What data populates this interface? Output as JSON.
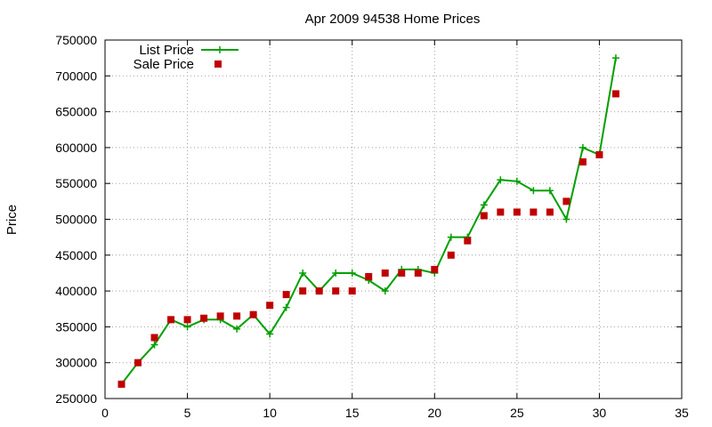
{
  "chart_data": {
    "type": "line",
    "title": "Apr 2009 94538 Home Prices",
    "xlabel": "",
    "ylabel": "Price",
    "xlim": [
      0,
      35
    ],
    "ylim": [
      250000,
      750000
    ],
    "xticks": [
      0,
      5,
      10,
      15,
      20,
      25,
      30,
      35
    ],
    "yticks": [
      250000,
      300000,
      350000,
      400000,
      450000,
      500000,
      550000,
      600000,
      650000,
      700000,
      750000
    ],
    "grid": true,
    "legend_position": "top-left",
    "series": [
      {
        "name": "List Price",
        "style": "line-plus",
        "color": "#00a000",
        "x": [
          1,
          2,
          3,
          4,
          5,
          6,
          7,
          8,
          9,
          10,
          11,
          12,
          13,
          14,
          15,
          16,
          17,
          18,
          19,
          20,
          21,
          22,
          23,
          24,
          25,
          26,
          27,
          28,
          29,
          30,
          31
        ],
        "y": [
          270000,
          300000,
          325000,
          360000,
          350000,
          360000,
          360000,
          347000,
          367000,
          340000,
          377000,
          425000,
          400000,
          425000,
          425000,
          415000,
          400000,
          430000,
          430000,
          425000,
          475000,
          475000,
          520000,
          555000,
          553000,
          540000,
          540000,
          500000,
          600000,
          590000,
          725000
        ]
      },
      {
        "name": "Sale Price",
        "style": "square",
        "color": "#c00000",
        "x": [
          1,
          2,
          3,
          4,
          5,
          6,
          7,
          8,
          9,
          10,
          11,
          12,
          13,
          14,
          15,
          16,
          17,
          18,
          19,
          20,
          21,
          22,
          23,
          24,
          25,
          26,
          27,
          28,
          29,
          30,
          31
        ],
        "y": [
          270000,
          300000,
          335000,
          360000,
          360000,
          362000,
          365000,
          365000,
          367000,
          380000,
          395000,
          400000,
          400000,
          400000,
          400000,
          420000,
          425000,
          425000,
          425000,
          430000,
          450000,
          470000,
          505000,
          510000,
          510000,
          510000,
          510000,
          525000,
          580000,
          590000,
          675000
        ]
      }
    ]
  }
}
